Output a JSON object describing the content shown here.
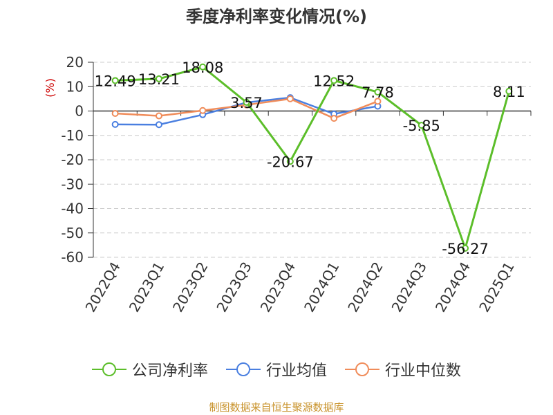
{
  "chart_data": {
    "type": "line",
    "title": "季度净利率变化情况(%)",
    "ylabel": "(%)",
    "ylim": [
      -60,
      20
    ],
    "yticks": [
      20,
      10,
      0,
      -10,
      -20,
      -30,
      -40,
      -50,
      -60
    ],
    "categories": [
      "2022Q4",
      "2023Q1",
      "2023Q2",
      "2023Q3",
      "2023Q4",
      "2024Q1",
      "2024Q2",
      "2024Q3",
      "2024Q4",
      "2025Q1"
    ],
    "series": [
      {
        "name": "公司净利率",
        "color": "#5cbe2a",
        "values": [
          12.49,
          13.21,
          18.08,
          3.57,
          -20.67,
          12.52,
          7.78,
          -5.85,
          -56.27,
          8.11
        ],
        "data_labels": [
          "12.49",
          "13.21",
          "18.08",
          "3.57",
          "-20.67",
          "12.52",
          "7.78",
          "-5.85",
          "-56.27",
          "8.11"
        ]
      },
      {
        "name": "行业均值",
        "color": "#4a7fe0",
        "values": [
          -5.5,
          -5.6,
          -1.5,
          3.5,
          5.5,
          -1.2,
          2.0,
          null,
          null,
          null
        ]
      },
      {
        "name": "行业中位数",
        "color": "#f08c5a",
        "values": [
          -1.0,
          -2.0,
          0.2,
          2.5,
          5.0,
          -3.0,
          4.0,
          null,
          null,
          null
        ]
      }
    ],
    "grid": true,
    "legend_position": "bottom"
  },
  "source": "制图数据来自恒生聚源数据库",
  "colors": {
    "axis": "#333333",
    "grid": "#cccccc",
    "ylabel": "#cc0000",
    "source": "#c8922a"
  }
}
